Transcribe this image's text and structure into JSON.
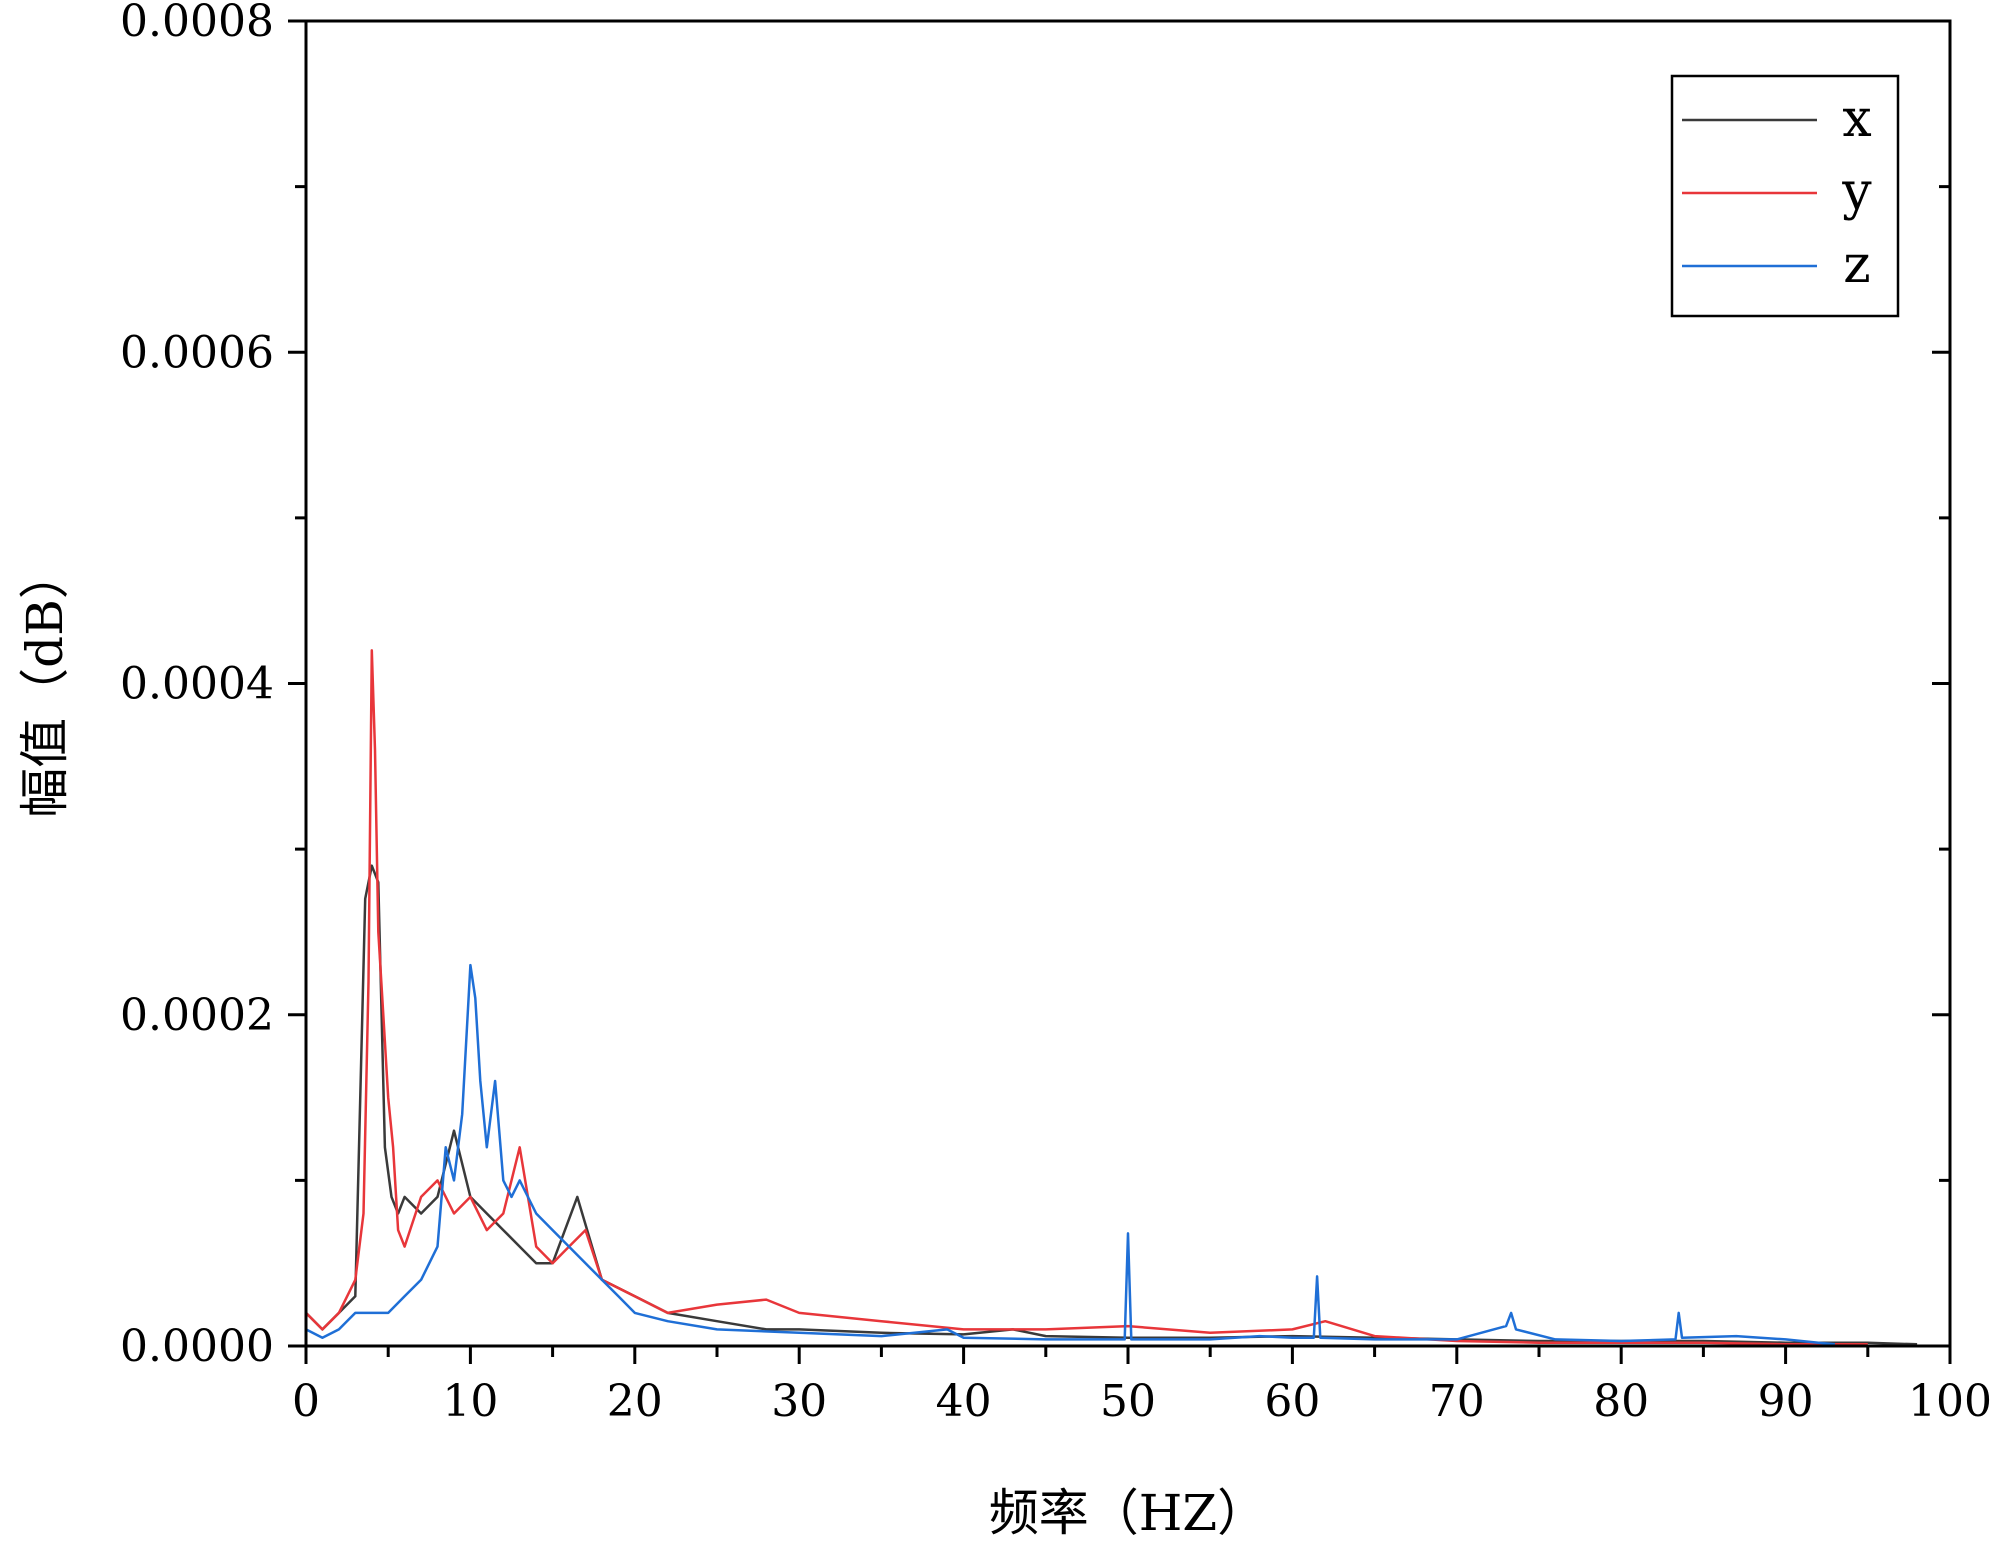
{
  "chart_data": {
    "type": "line",
    "xlabel": "频率（HZ）",
    "ylabel": "幅值（dB）",
    "xlim": [
      0,
      100
    ],
    "ylim": [
      0,
      0.0008
    ],
    "x_ticks": [
      "0",
      "10",
      "20",
      "30",
      "40",
      "50",
      "60",
      "70",
      "80",
      "90",
      "100"
    ],
    "y_ticks": [
      "0.0000",
      "0.0002",
      "0.0004",
      "0.0006",
      "0.0008"
    ],
    "grid": false,
    "legend": "top-right",
    "series": [
      {
        "name": "x",
        "color": "#3a3a3a",
        "x": [
          0,
          1,
          2,
          3,
          3.6,
          4.0,
          4.4,
          4.8,
          5.2,
          5.6,
          6,
          7,
          8,
          9,
          10,
          11,
          12,
          13,
          14,
          15,
          16.5,
          18,
          20,
          22,
          25,
          28,
          30,
          35,
          40,
          43,
          45,
          50,
          55,
          60,
          65,
          70,
          75,
          80,
          85,
          90,
          95,
          98
        ],
        "y": [
          2e-05,
          1e-05,
          2e-05,
          3e-05,
          0.00027,
          0.00029,
          0.00028,
          0.00012,
          9e-05,
          8e-05,
          9e-05,
          8e-05,
          9e-05,
          0.00013,
          9e-05,
          8e-05,
          7e-05,
          6e-05,
          5e-05,
          5e-05,
          9e-05,
          4e-05,
          3e-05,
          2e-05,
          1.5e-05,
          1e-05,
          1e-05,
          8e-06,
          7e-06,
          1e-05,
          6e-06,
          5e-06,
          5e-06,
          6e-06,
          5e-06,
          4e-06,
          3e-06,
          3e-06,
          3e-06,
          2e-06,
          2e-06,
          1e-06
        ]
      },
      {
        "name": "y",
        "color": "#e8363a",
        "x": [
          0,
          1,
          2,
          3,
          3.5,
          3.8,
          4.0,
          4.2,
          4.4,
          4.7,
          5.0,
          5.3,
          5.6,
          6,
          7,
          8,
          9,
          10,
          11,
          12,
          13,
          14,
          15,
          16,
          17,
          18,
          20,
          22,
          25,
          28,
          30,
          35,
          40,
          45,
          50,
          55,
          60,
          62,
          65,
          70,
          75,
          80,
          85,
          90,
          95
        ],
        "y": [
          2e-05,
          1e-05,
          2e-05,
          4e-05,
          8e-05,
          0.00022,
          0.00042,
          0.00036,
          0.00025,
          0.0002,
          0.00015,
          0.00012,
          7e-05,
          6e-05,
          9e-05,
          0.0001,
          8e-05,
          9e-05,
          7e-05,
          8e-05,
          0.00012,
          6e-05,
          5e-05,
          6e-05,
          7e-05,
          4e-05,
          3e-05,
          2e-05,
          2.5e-05,
          2.8e-05,
          2e-05,
          1.5e-05,
          1e-05,
          1e-05,
          1.2e-05,
          8e-06,
          1e-05,
          1.5e-05,
          6e-06,
          3e-06,
          2e-06,
          2e-06,
          2e-06,
          1e-06,
          1e-06
        ]
      },
      {
        "name": "z",
        "color": "#1f6fd6",
        "x": [
          0,
          1,
          2,
          3,
          4,
          5,
          6,
          7,
          8,
          8.5,
          9,
          9.5,
          10.0,
          10.3,
          10.6,
          11,
          11.5,
          12,
          12.5,
          13,
          14,
          15,
          16,
          17,
          18,
          19,
          20,
          22,
          25,
          30,
          35,
          39,
          40,
          45,
          49.8,
          50.0,
          50.2,
          55,
          58,
          60,
          61.3,
          61.5,
          61.7,
          65,
          70,
          73,
          73.3,
          73.6,
          76,
          80,
          83.3,
          83.5,
          83.7,
          87,
          90,
          92,
          93
        ],
        "y": [
          1e-05,
          5e-06,
          1e-05,
          2e-05,
          2e-05,
          2e-05,
          3e-05,
          4e-05,
          6e-05,
          0.00012,
          0.0001,
          0.00014,
          0.00023,
          0.00021,
          0.00016,
          0.00012,
          0.00016,
          0.0001,
          9e-05,
          0.0001,
          8e-05,
          7e-05,
          6e-05,
          5e-05,
          4e-05,
          3e-05,
          2e-05,
          1.5e-05,
          1e-05,
          8e-06,
          6e-06,
          1e-05,
          5e-06,
          4e-06,
          4e-06,
          6.8e-05,
          4e-06,
          4e-06,
          6e-06,
          5e-06,
          5e-06,
          4.2e-05,
          5e-06,
          4e-06,
          4e-06,
          1.2e-05,
          2e-05,
          1e-05,
          4e-06,
          3e-06,
          4e-06,
          2e-05,
          5e-06,
          6e-06,
          4e-06,
          2e-06,
          1e-06
        ]
      }
    ]
  }
}
